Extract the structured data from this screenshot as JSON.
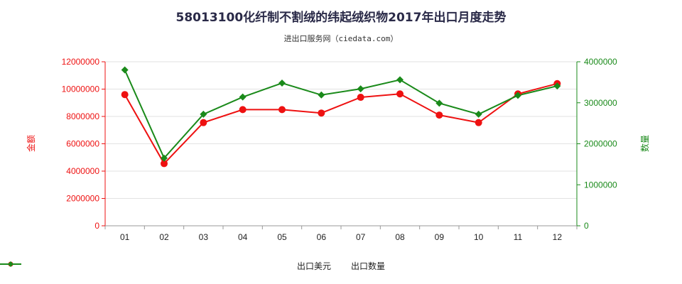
{
  "header": {
    "title": "58013100化纤制不割绒的纬起绒织物2017年出口月度走势",
    "subtitle": "进出口服务网（ciedata.com）"
  },
  "chart_data": {
    "type": "line",
    "categories": [
      "01",
      "02",
      "03",
      "04",
      "05",
      "06",
      "07",
      "08",
      "09",
      "10",
      "11",
      "12"
    ],
    "series": [
      {
        "name": "出口美元",
        "axis": "left",
        "color": "#ee1111",
        "values": [
          9600000,
          4550000,
          7550000,
          8500000,
          8500000,
          8250000,
          9400000,
          9650000,
          8100000,
          7550000,
          9650000,
          10400000
        ]
      },
      {
        "name": "出口数量",
        "axis": "right",
        "color": "#1a8a1a",
        "values": [
          3800000,
          1650000,
          2720000,
          3140000,
          3480000,
          3190000,
          3340000,
          3560000,
          2990000,
          2720000,
          3180000,
          3410000
        ]
      }
    ],
    "ylabel_left": "金额",
    "ylabel_right": "数量",
    "ylim_left": [
      0,
      12000000
    ],
    "ylim_right": [
      0,
      4000000
    ],
    "yticks_left": [
      "0",
      "2000000",
      "4000000",
      "6000000",
      "8000000",
      "10000000",
      "12000000"
    ],
    "yticks_right": [
      "0",
      "1000000",
      "2000000",
      "3000000",
      "4000000"
    ],
    "grid": true
  }
}
